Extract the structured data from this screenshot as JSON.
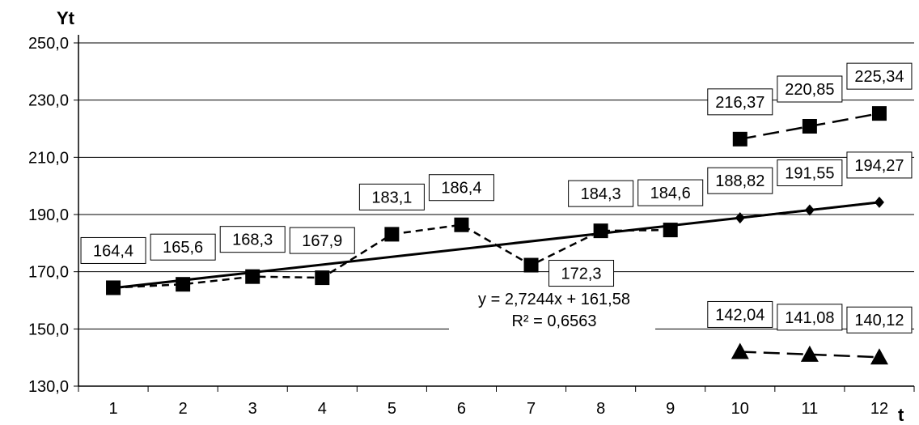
{
  "chart_data": {
    "type": "line",
    "xlabel": "t",
    "ylabel": "Yt",
    "ylim": [
      130,
      250
    ],
    "y_ticks": [
      "250,0",
      "230,0",
      "210,0",
      "190,0",
      "170,0",
      "150,0",
      "130,0"
    ],
    "y_tick_values": [
      250,
      230,
      210,
      190,
      170,
      150,
      130
    ],
    "categories": [
      "1",
      "2",
      "3",
      "4",
      "5",
      "6",
      "7",
      "8",
      "9",
      "10",
      "11",
      "12"
    ],
    "x_values": [
      1,
      2,
      3,
      4,
      5,
      6,
      7,
      8,
      9,
      10,
      11,
      12
    ],
    "grid": true,
    "series": [
      {
        "marker": "square",
        "line": "short-dash",
        "x": [
          1,
          2,
          3,
          4,
          5,
          6,
          7,
          8,
          9
        ],
        "values": [
          164.4,
          165.6,
          168.3,
          167.9,
          183.1,
          186.4,
          172.3,
          184.3,
          184.6
        ],
        "labels": [
          "164,4",
          "165,6",
          "168,3",
          "167,9",
          "183,1",
          "186,4",
          "172,3",
          "184,3",
          "184,6"
        ]
      },
      {
        "marker": "diamond",
        "line": "solid",
        "x": [
          10,
          11,
          12
        ],
        "values": [
          188.82,
          191.55,
          194.27
        ],
        "labels": [
          "188,82",
          "191,55",
          "194,27"
        ]
      },
      {
        "marker": "square",
        "line": "long-dash",
        "x": [
          10,
          11,
          12
        ],
        "values": [
          216.37,
          220.85,
          225.34
        ],
        "labels": [
          "216,37",
          "220,85",
          "225,34"
        ]
      },
      {
        "marker": "triangle",
        "line": "long-dash",
        "x": [
          10,
          11,
          12
        ],
        "values": [
          142.04,
          141.08,
          140.12
        ],
        "labels": [
          "142,04",
          "141,08",
          "140,12"
        ]
      }
    ],
    "trendline": {
      "slope": 2.7244,
      "intercept": 161.58,
      "x_range": [
        1,
        12
      ],
      "equation": "y = 2,7244x + 161,58",
      "r_squared": "R² = 0,6563"
    },
    "colors": {
      "ink": "#000000",
      "background": "#ffffff"
    }
  }
}
